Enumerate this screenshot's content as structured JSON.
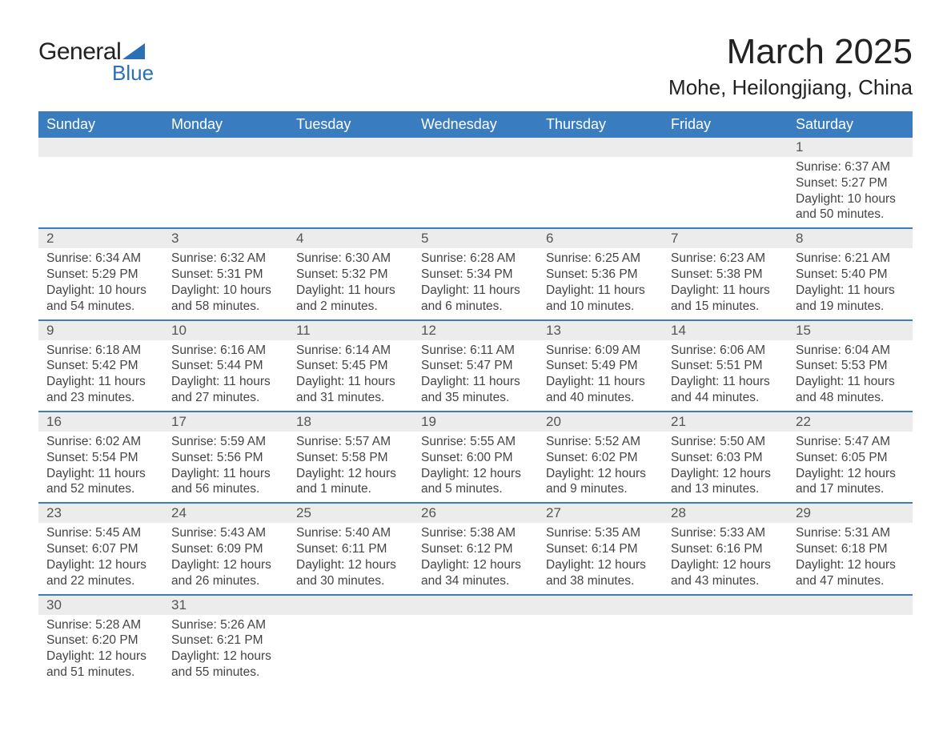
{
  "logo": {
    "text_general": "General",
    "text_blue": "Blue",
    "triangle_color": "#2c6fb5"
  },
  "header": {
    "month_title": "March 2025",
    "location": "Mohe, Heilongjiang, China"
  },
  "day_labels": [
    "Sunday",
    "Monday",
    "Tuesday",
    "Wednesday",
    "Thursday",
    "Friday",
    "Saturday"
  ],
  "colors": {
    "header_bg": "#3a7cc0",
    "header_text": "#ffffff",
    "row_border": "#3a7cc0",
    "daynum_bg": "#ececec",
    "body_bg": "#ffffff",
    "text": "#444444"
  },
  "weeks": [
    [
      null,
      null,
      null,
      null,
      null,
      null,
      {
        "n": "1",
        "sunrise": "Sunrise: 6:37 AM",
        "sunset": "Sunset: 5:27 PM",
        "daylight": "Daylight: 10 hours and 50 minutes."
      }
    ],
    [
      {
        "n": "2",
        "sunrise": "Sunrise: 6:34 AM",
        "sunset": "Sunset: 5:29 PM",
        "daylight": "Daylight: 10 hours and 54 minutes."
      },
      {
        "n": "3",
        "sunrise": "Sunrise: 6:32 AM",
        "sunset": "Sunset: 5:31 PM",
        "daylight": "Daylight: 10 hours and 58 minutes."
      },
      {
        "n": "4",
        "sunrise": "Sunrise: 6:30 AM",
        "sunset": "Sunset: 5:32 PM",
        "daylight": "Daylight: 11 hours and 2 minutes."
      },
      {
        "n": "5",
        "sunrise": "Sunrise: 6:28 AM",
        "sunset": "Sunset: 5:34 PM",
        "daylight": "Daylight: 11 hours and 6 minutes."
      },
      {
        "n": "6",
        "sunrise": "Sunrise: 6:25 AM",
        "sunset": "Sunset: 5:36 PM",
        "daylight": "Daylight: 11 hours and 10 minutes."
      },
      {
        "n": "7",
        "sunrise": "Sunrise: 6:23 AM",
        "sunset": "Sunset: 5:38 PM",
        "daylight": "Daylight: 11 hours and 15 minutes."
      },
      {
        "n": "8",
        "sunrise": "Sunrise: 6:21 AM",
        "sunset": "Sunset: 5:40 PM",
        "daylight": "Daylight: 11 hours and 19 minutes."
      }
    ],
    [
      {
        "n": "9",
        "sunrise": "Sunrise: 6:18 AM",
        "sunset": "Sunset: 5:42 PM",
        "daylight": "Daylight: 11 hours and 23 minutes."
      },
      {
        "n": "10",
        "sunrise": "Sunrise: 6:16 AM",
        "sunset": "Sunset: 5:44 PM",
        "daylight": "Daylight: 11 hours and 27 minutes."
      },
      {
        "n": "11",
        "sunrise": "Sunrise: 6:14 AM",
        "sunset": "Sunset: 5:45 PM",
        "daylight": "Daylight: 11 hours and 31 minutes."
      },
      {
        "n": "12",
        "sunrise": "Sunrise: 6:11 AM",
        "sunset": "Sunset: 5:47 PM",
        "daylight": "Daylight: 11 hours and 35 minutes."
      },
      {
        "n": "13",
        "sunrise": "Sunrise: 6:09 AM",
        "sunset": "Sunset: 5:49 PM",
        "daylight": "Daylight: 11 hours and 40 minutes."
      },
      {
        "n": "14",
        "sunrise": "Sunrise: 6:06 AM",
        "sunset": "Sunset: 5:51 PM",
        "daylight": "Daylight: 11 hours and 44 minutes."
      },
      {
        "n": "15",
        "sunrise": "Sunrise: 6:04 AM",
        "sunset": "Sunset: 5:53 PM",
        "daylight": "Daylight: 11 hours and 48 minutes."
      }
    ],
    [
      {
        "n": "16",
        "sunrise": "Sunrise: 6:02 AM",
        "sunset": "Sunset: 5:54 PM",
        "daylight": "Daylight: 11 hours and 52 minutes."
      },
      {
        "n": "17",
        "sunrise": "Sunrise: 5:59 AM",
        "sunset": "Sunset: 5:56 PM",
        "daylight": "Daylight: 11 hours and 56 minutes."
      },
      {
        "n": "18",
        "sunrise": "Sunrise: 5:57 AM",
        "sunset": "Sunset: 5:58 PM",
        "daylight": "Daylight: 12 hours and 1 minute."
      },
      {
        "n": "19",
        "sunrise": "Sunrise: 5:55 AM",
        "sunset": "Sunset: 6:00 PM",
        "daylight": "Daylight: 12 hours and 5 minutes."
      },
      {
        "n": "20",
        "sunrise": "Sunrise: 5:52 AM",
        "sunset": "Sunset: 6:02 PM",
        "daylight": "Daylight: 12 hours and 9 minutes."
      },
      {
        "n": "21",
        "sunrise": "Sunrise: 5:50 AM",
        "sunset": "Sunset: 6:03 PM",
        "daylight": "Daylight: 12 hours and 13 minutes."
      },
      {
        "n": "22",
        "sunrise": "Sunrise: 5:47 AM",
        "sunset": "Sunset: 6:05 PM",
        "daylight": "Daylight: 12 hours and 17 minutes."
      }
    ],
    [
      {
        "n": "23",
        "sunrise": "Sunrise: 5:45 AM",
        "sunset": "Sunset: 6:07 PM",
        "daylight": "Daylight: 12 hours and 22 minutes."
      },
      {
        "n": "24",
        "sunrise": "Sunrise: 5:43 AM",
        "sunset": "Sunset: 6:09 PM",
        "daylight": "Daylight: 12 hours and 26 minutes."
      },
      {
        "n": "25",
        "sunrise": "Sunrise: 5:40 AM",
        "sunset": "Sunset: 6:11 PM",
        "daylight": "Daylight: 12 hours and 30 minutes."
      },
      {
        "n": "26",
        "sunrise": "Sunrise: 5:38 AM",
        "sunset": "Sunset: 6:12 PM",
        "daylight": "Daylight: 12 hours and 34 minutes."
      },
      {
        "n": "27",
        "sunrise": "Sunrise: 5:35 AM",
        "sunset": "Sunset: 6:14 PM",
        "daylight": "Daylight: 12 hours and 38 minutes."
      },
      {
        "n": "28",
        "sunrise": "Sunrise: 5:33 AM",
        "sunset": "Sunset: 6:16 PM",
        "daylight": "Daylight: 12 hours and 43 minutes."
      },
      {
        "n": "29",
        "sunrise": "Sunrise: 5:31 AM",
        "sunset": "Sunset: 6:18 PM",
        "daylight": "Daylight: 12 hours and 47 minutes."
      }
    ],
    [
      {
        "n": "30",
        "sunrise": "Sunrise: 5:28 AM",
        "sunset": "Sunset: 6:20 PM",
        "daylight": "Daylight: 12 hours and 51 minutes."
      },
      {
        "n": "31",
        "sunrise": "Sunrise: 5:26 AM",
        "sunset": "Sunset: 6:21 PM",
        "daylight": "Daylight: 12 hours and 55 minutes."
      },
      null,
      null,
      null,
      null,
      null
    ]
  ]
}
